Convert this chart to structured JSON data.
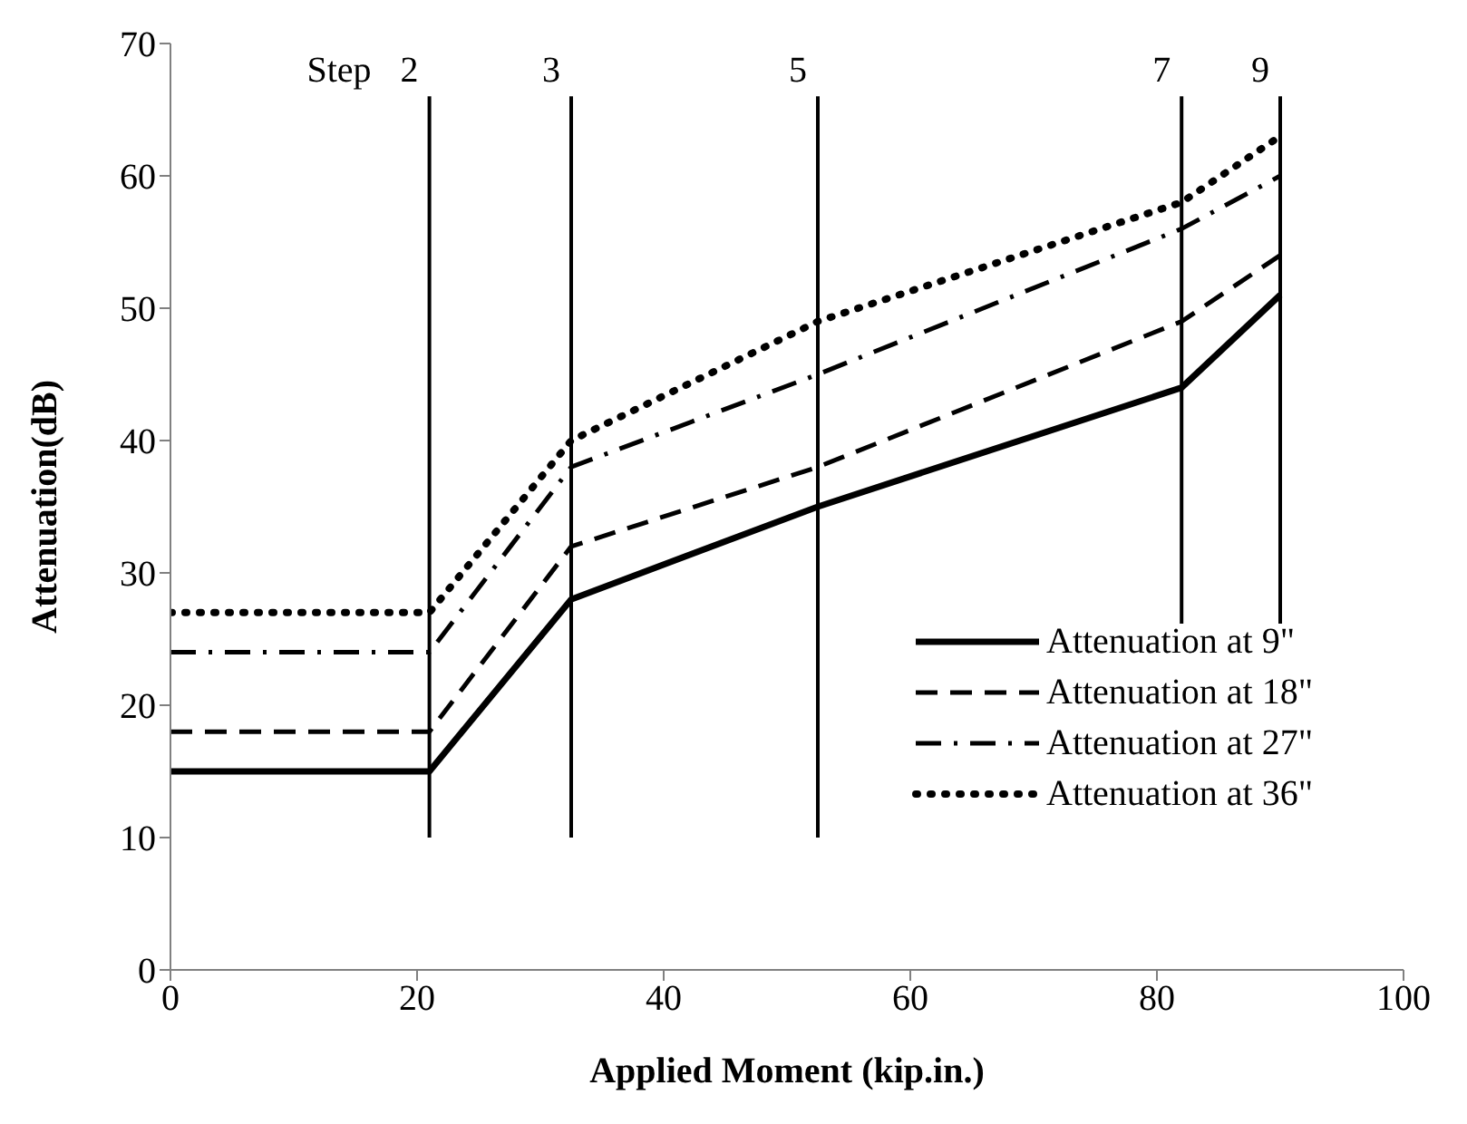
{
  "chart_data": {
    "type": "line",
    "xlabel": "Applied Moment (kip.in.)",
    "ylabel": "Attenuation(dB)",
    "x": [
      0,
      21,
      32.5,
      52.5,
      82,
      90
    ],
    "series": [
      {
        "name": "Attenuation at 9\"",
        "color": "#000000",
        "line_style": "solid",
        "values": [
          15,
          15,
          28,
          35,
          44,
          51
        ]
      },
      {
        "name": "Attenuation at 18\"",
        "color": "#000000",
        "line_style": "dashed",
        "values": [
          18,
          18,
          32,
          38,
          49,
          54
        ]
      },
      {
        "name": "Attenuation at 27\"",
        "color": "#000000",
        "line_style": "dashdot",
        "values": [
          24,
          24,
          38,
          45,
          56,
          60
        ]
      },
      {
        "name": "Attenuation at 36\"",
        "color": "#000000",
        "line_style": "dotted",
        "values": [
          27,
          27,
          40,
          49,
          58,
          63
        ]
      }
    ],
    "xlim": [
      0,
      100
    ],
    "xticks": [
      0,
      20,
      40,
      60,
      80,
      100
    ],
    "ylim": [
      0,
      70
    ],
    "yticks": [
      0,
      10,
      20,
      30,
      40,
      50,
      60,
      70
    ],
    "ref_lines": [
      {
        "axis": "x",
        "value": 21,
        "color": "#000000"
      },
      {
        "axis": "x",
        "value": 32.5,
        "color": "#000000"
      },
      {
        "axis": "x",
        "value": 52.5,
        "color": "#000000"
      },
      {
        "axis": "x",
        "value": 82,
        "color": "#000000"
      },
      {
        "axis": "x",
        "value": 90,
        "color": "#000000"
      }
    ],
    "annotations": [
      "Step",
      "2",
      "3",
      "5",
      "7",
      "9"
    ],
    "grid": false,
    "legend": "bottom right",
    "marker": "none"
  }
}
